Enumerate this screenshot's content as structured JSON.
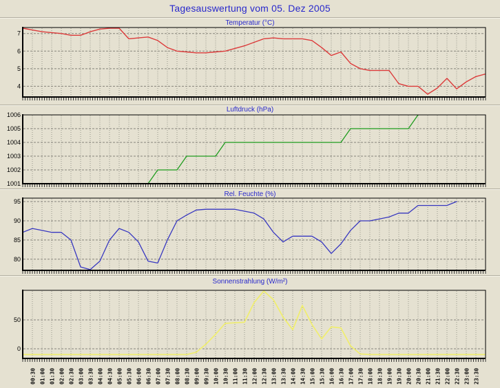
{
  "page": {
    "title": "Tagesauswertung vom 05. Dez 2005"
  },
  "colors": {
    "background": "#e5e1d1",
    "title_text": "#2828cc",
    "plot_border": "#000000",
    "grid_horizontal": "#85837a",
    "grid_vertical": "#98968c",
    "temperature_line": "#dc3a3a",
    "pressure_line": "#1e9c1e",
    "humidity_line": "#3737c0",
    "sun_line": "#f0ee6e"
  },
  "time_axis": {
    "labels": [
      "00:30",
      "01:00",
      "01:30",
      "02:00",
      "02:30",
      "03:00",
      "03:30",
      "04:00",
      "04:30",
      "05:00",
      "05:30",
      "06:00",
      "06:30",
      "07:00",
      "07:30",
      "08:00",
      "08:30",
      "09:00",
      "09:30",
      "10:00",
      "10:30",
      "11:00",
      "11:30",
      "12:00",
      "12:30",
      "13:00",
      "13:30",
      "14:00",
      "14:30",
      "15:00",
      "15:30",
      "16:00",
      "16:30",
      "17:00",
      "17:30",
      "18:00",
      "18:30",
      "19:00",
      "19:30",
      "20:00",
      "20:30",
      "21:00",
      "21:30",
      "22:00",
      "22:30",
      "23:00",
      "23:30"
    ],
    "start_hour": 0.5,
    "step_hours": 0.5
  },
  "chart_data": [
    {
      "type": "line",
      "title": "Temperatur (°C)",
      "unit": "°C",
      "color": "#dc3a3a",
      "line_width": 1.4,
      "ylim": [
        3.39,
        7.34
      ],
      "yticks": [
        7,
        6,
        5,
        4
      ],
      "gridlines": [
        7,
        6,
        5,
        4
      ],
      "x_start_hour": 0,
      "x_step_hours": 0.5,
      "values": [
        7.3,
        7.2,
        7.1,
        7.05,
        7.0,
        6.9,
        6.9,
        7.1,
        7.25,
        7.3,
        7.3,
        6.7,
        6.75,
        6.8,
        6.6,
        6.2,
        6.0,
        5.95,
        5.9,
        5.9,
        5.95,
        6.0,
        6.15,
        6.3,
        6.5,
        6.7,
        6.75,
        6.7,
        6.7,
        6.7,
        6.6,
        6.2,
        5.75,
        5.95,
        5.3,
        5.0,
        4.9,
        4.9,
        4.9,
        4.15,
        4.0,
        4.0,
        3.55,
        3.9,
        4.45,
        3.85,
        4.25,
        4.55,
        4.7
      ]
    },
    {
      "type": "line",
      "title": "Luftdruck (hPa)",
      "unit": "hPa",
      "color": "#1e9c1e",
      "line_width": 1.3,
      "ylim": [
        1001,
        1006
      ],
      "yticks": [
        1006,
        1005,
        1004,
        1003,
        1002,
        1001
      ],
      "gridlines": [
        1005,
        1004,
        1003,
        1002
      ],
      "x_start_hour": 0,
      "x_step_hours": 0.5,
      "values": [
        1001,
        1001,
        1001,
        1001,
        1001,
        1001,
        1001,
        1001,
        1001,
        1001,
        1001,
        1001,
        1001,
        1001,
        1002,
        1002,
        1002,
        1003,
        1003,
        1003,
        1003,
        1004,
        1004,
        1004,
        1004,
        1004,
        1004,
        1004,
        1004,
        1004,
        1004,
        1004,
        1004,
        1004,
        1005,
        1005,
        1005,
        1005,
        1005,
        1005,
        1005,
        1006
      ]
    },
    {
      "type": "line",
      "title": "Rel. Feuchte (%)",
      "unit": "%",
      "color": "#3737c0",
      "line_width": 1.3,
      "ylim": [
        77.1,
        95.9
      ],
      "yticks": [
        95,
        90,
        85,
        80
      ],
      "gridlines": [
        95,
        90,
        85,
        80
      ],
      "x_start_hour": 0,
      "x_step_hours": 0.5,
      "values": [
        87,
        88,
        87.5,
        87,
        87,
        85,
        78,
        77.3,
        79.5,
        85,
        88,
        87,
        84.5,
        79.5,
        79,
        85,
        90,
        91.5,
        92.8,
        93,
        93,
        93,
        93,
        92.5,
        92,
        90.5,
        87,
        84.5,
        86,
        86,
        86,
        84.5,
        81.5,
        84,
        87.5,
        90,
        90,
        90.5,
        91,
        92,
        92,
        94,
        94,
        94,
        94,
        95
      ]
    },
    {
      "type": "line",
      "title": "Sonnenstrahlung (W/m²)",
      "unit": "W/m²",
      "color": "#f0ee6e",
      "line_width": 1.7,
      "ylim": [
        -16.7,
        101.2
      ],
      "yticks": [
        50,
        0
      ],
      "gridlines": [
        50,
        0
      ],
      "x_start_hour": 0,
      "x_step_hours": 0.5,
      "values": [
        -10,
        -10,
        -10,
        -10,
        -10,
        -10,
        -10,
        -10,
        -10,
        -10,
        -10,
        -10,
        -10,
        -10,
        -10,
        -10,
        -10,
        -10,
        -6,
        8,
        25,
        44,
        45,
        46,
        80,
        100,
        85,
        55,
        33,
        75,
        42,
        17,
        38,
        36,
        5,
        -9,
        -10,
        -10,
        -10,
        -10,
        -10,
        -10,
        -10,
        -10,
        -10,
        -10,
        -10,
        -10,
        -10
      ]
    }
  ]
}
